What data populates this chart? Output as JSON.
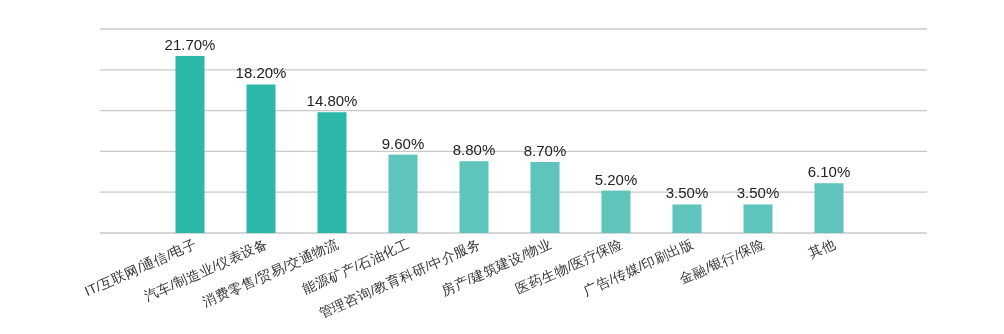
{
  "chart_data": {
    "type": "bar",
    "categories": [
      "IT/互联网/通信/电子",
      "汽车/制造业/仪表设备",
      "消费零售/贸易/交通物流",
      "能源矿产/石油化工",
      "管理咨询/教育科研/中介服务",
      "房产/建筑建设/物业",
      "医药生物/医疗保险",
      "广告/传媒/印刷出版",
      "金融/银行/保险",
      "其他"
    ],
    "values": [
      21.7,
      18.2,
      14.8,
      9.6,
      8.8,
      8.7,
      5.2,
      3.5,
      3.5,
      6.1
    ],
    "value_labels": [
      "21.70%",
      "18.20%",
      "14.80%",
      "9.60%",
      "8.80%",
      "8.70%",
      "5.20%",
      "3.50%",
      "3.50%",
      "6.10%"
    ],
    "colors": [
      "#2bb8a8",
      "#2bb8a8",
      "#2bb8a8",
      "#5ec4bc",
      "#5ec4bc",
      "#5ec4bc",
      "#5ec4bc",
      "#5ec4bc",
      "#5ec4bc",
      "#5ec4bc"
    ],
    "ylim": [
      0,
      25
    ],
    "yticks": [
      {
        "value": 0,
        "label": null
      },
      {
        "value": 5,
        "label": null
      },
      {
        "value": 10,
        "label": null
      },
      {
        "value": 15,
        "label": null
      },
      {
        "value": 20,
        "label": null
      },
      {
        "value": 25,
        "label": null
      }
    ],
    "tick_labels": "x",
    "grid": "y"
  }
}
